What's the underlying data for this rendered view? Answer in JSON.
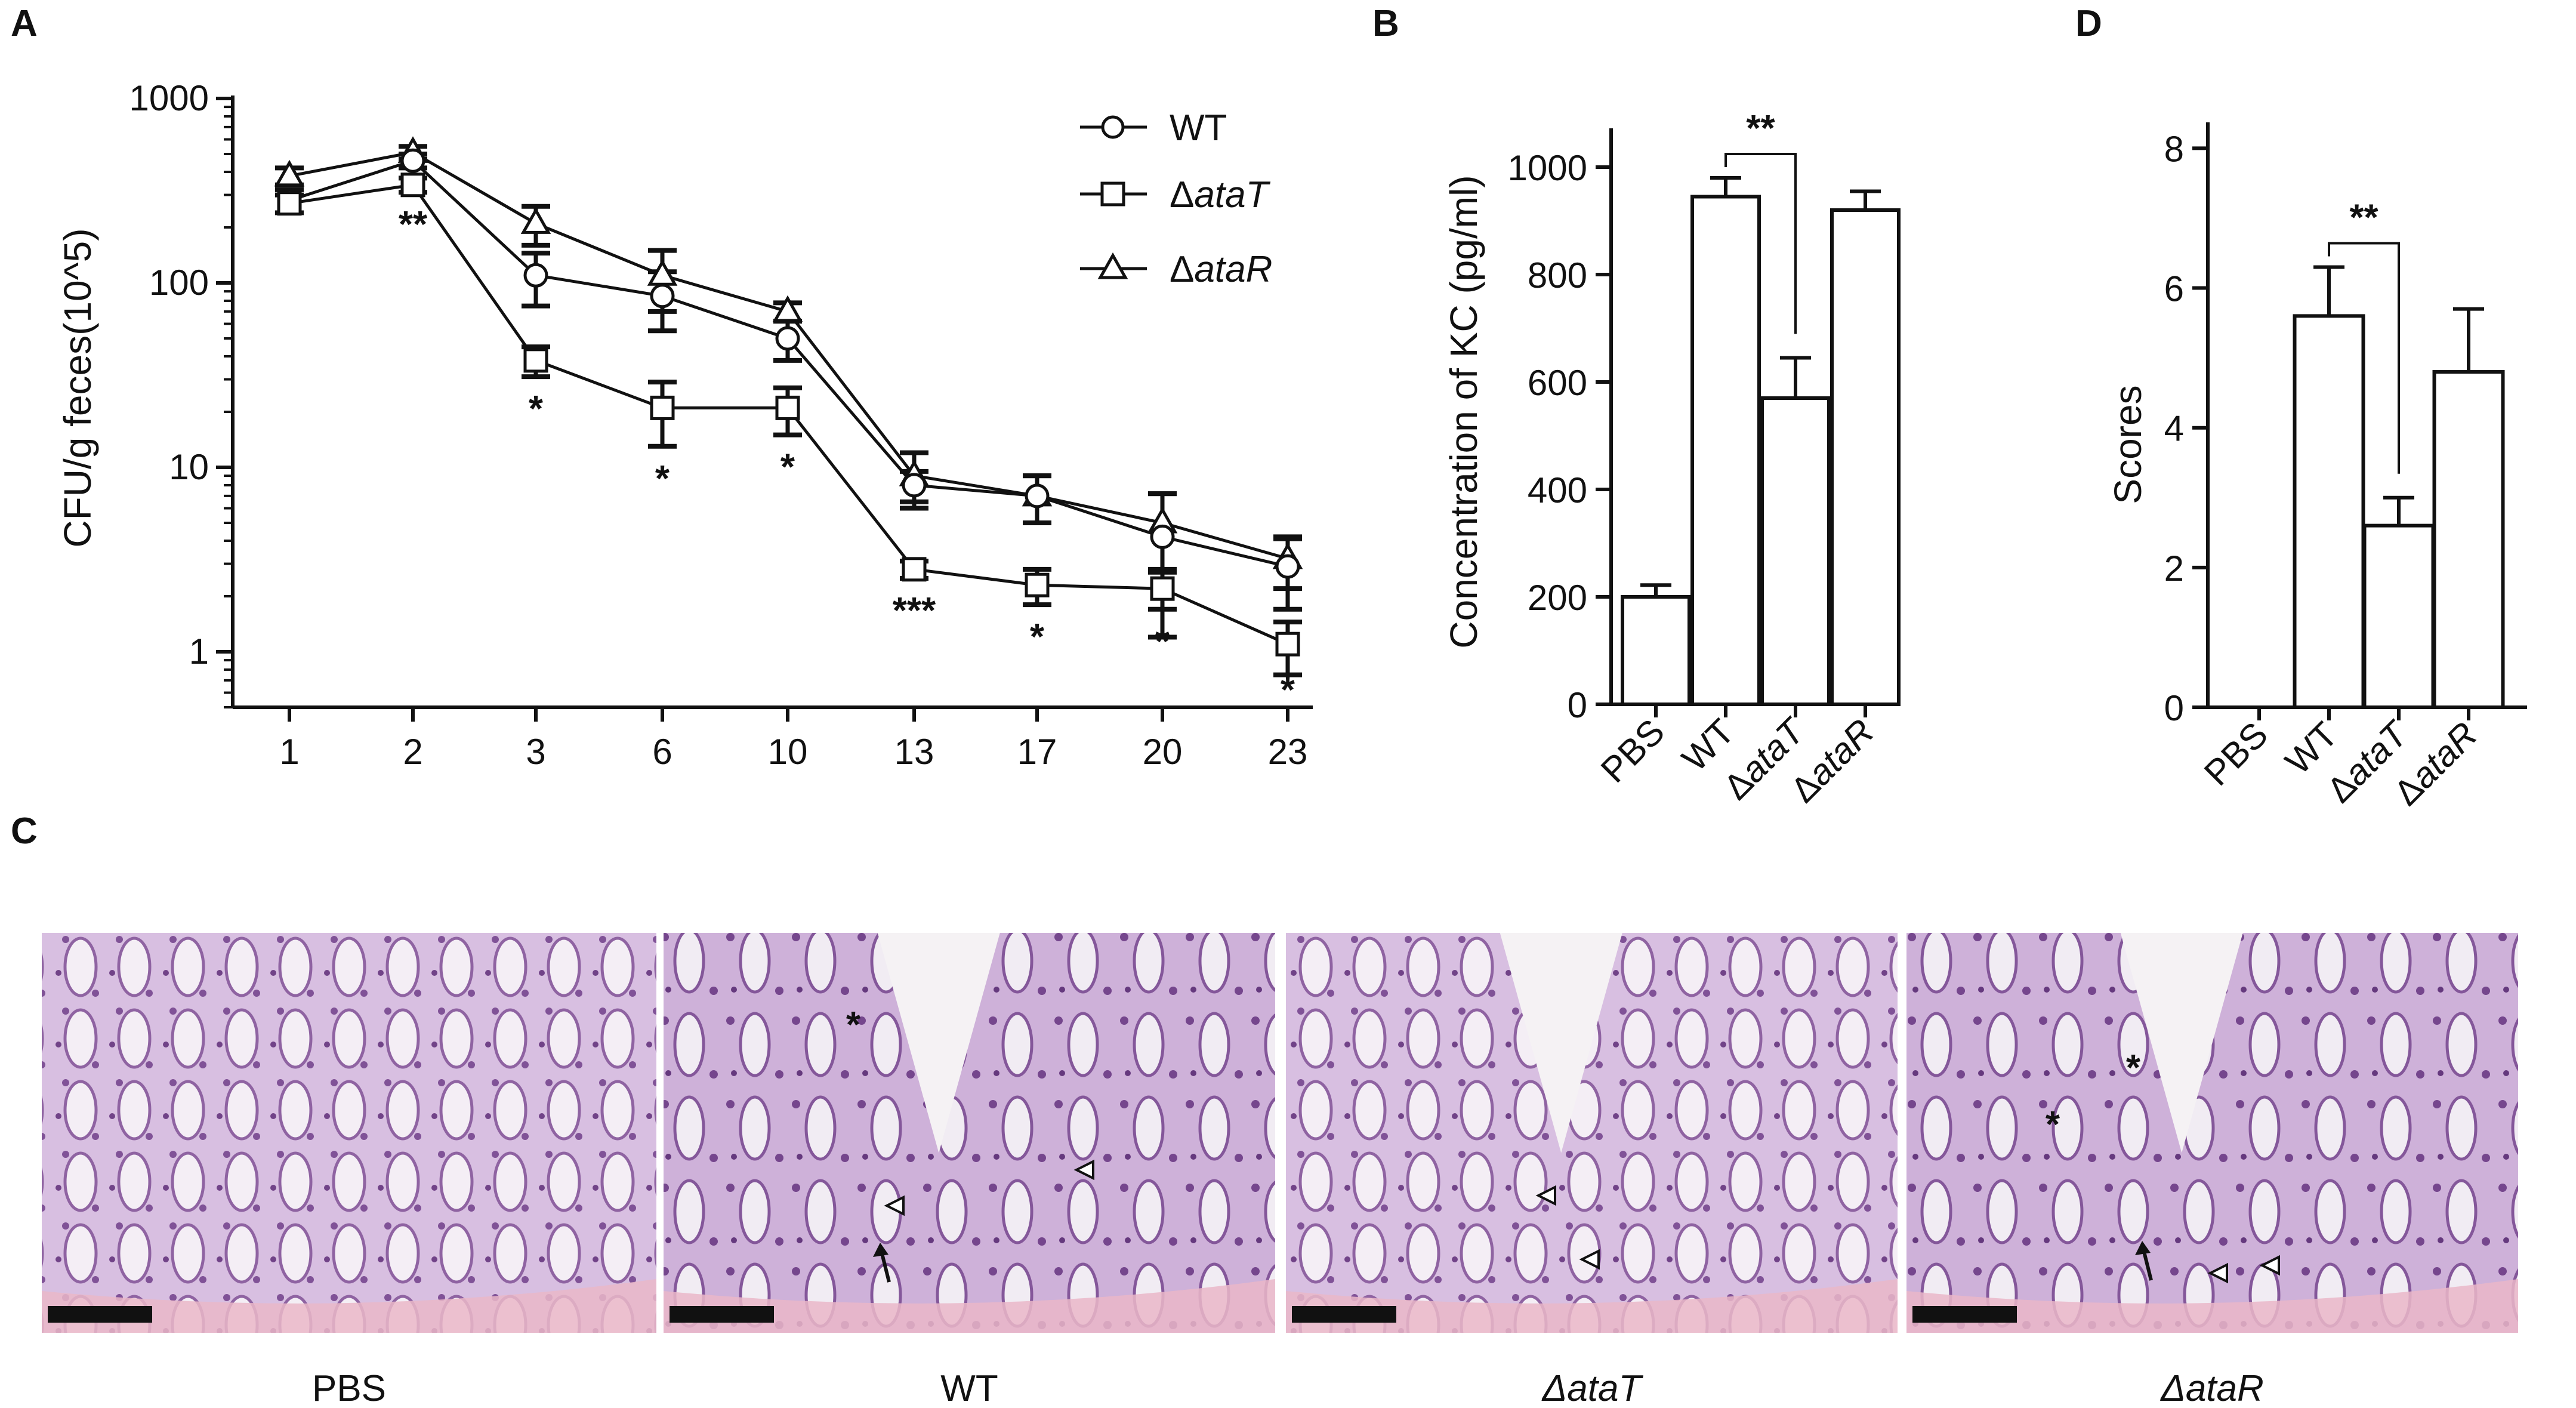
{
  "panels": {
    "A": "A",
    "B": "B",
    "C": "C",
    "D": "D"
  },
  "chart_data": [
    {
      "panel": "A",
      "type": "line",
      "ylabel": "CFU/g feces(10^5)",
      "yscale": "log",
      "ylim": [
        0.5,
        1000
      ],
      "yticks": [
        "1",
        "10",
        "100",
        "1000"
      ],
      "ytick_values": [
        1,
        10,
        100,
        1000
      ],
      "categories": [
        "1",
        "2",
        "3",
        "6",
        "10",
        "13",
        "17",
        "20",
        "23"
      ],
      "legend_position": "top-right",
      "series": [
        {
          "name": "WT",
          "marker": "circle",
          "values": [
            280,
            460,
            110,
            85,
            50,
            8,
            7,
            4.2,
            2.9
          ],
          "err": [
            40,
            40,
            35,
            30,
            12,
            1.5,
            2,
            3,
            1.2
          ]
        },
        {
          "name": "ΔataT",
          "marker": "square",
          "values": [
            270,
            340,
            38,
            21,
            21,
            2.8,
            2.3,
            2.2,
            1.1
          ],
          "err": [
            30,
            30,
            7,
            8,
            6,
            0.3,
            0.5,
            0.5,
            0.35
          ]
        },
        {
          "name": "ΔataR",
          "marker": "triangle",
          "values": [
            380,
            510,
            210,
            110,
            70,
            9,
            7,
            5,
            3.2
          ],
          "err": [
            40,
            40,
            50,
            40,
            8,
            3,
            2,
            2.2,
            1
          ]
        }
      ],
      "annotations": [
        {
          "category": "2",
          "text": "**"
        },
        {
          "category": "3",
          "text": "*"
        },
        {
          "category": "6",
          "text": "*"
        },
        {
          "category": "10",
          "text": "*"
        },
        {
          "category": "13",
          "text": "***"
        },
        {
          "category": "17",
          "text": "*"
        },
        {
          "category": "20",
          "text": "*"
        },
        {
          "category": "23",
          "text": "*"
        }
      ]
    },
    {
      "panel": "B",
      "type": "bar",
      "ylabel": "Concentration of KC (pg/ml)",
      "ylim": [
        0,
        1050
      ],
      "yticks": [
        "0",
        "200",
        "400",
        "600",
        "800",
        "1000"
      ],
      "ytick_values": [
        0,
        200,
        400,
        600,
        800,
        1000
      ],
      "categories": [
        "PBS",
        "WT",
        "ΔataT",
        "ΔataR"
      ],
      "values": [
        200,
        945,
        570,
        920
      ],
      "err": [
        22,
        35,
        75,
        35
      ],
      "significance": {
        "from": "WT",
        "to": "ΔataT",
        "text": "**"
      }
    },
    {
      "panel": "D",
      "type": "bar",
      "ylabel": "Scores",
      "ylim": [
        0,
        8.2
      ],
      "yticks": [
        "0",
        "2",
        "4",
        "6",
        "8"
      ],
      "ytick_values": [
        0,
        2,
        4,
        6,
        8
      ],
      "categories": [
        "PBS",
        "WT",
        "ΔataT",
        "ΔataR"
      ],
      "values": [
        0,
        5.6,
        2.6,
        4.8
      ],
      "err": [
        0,
        0.7,
        0.4,
        0.9
      ],
      "significance": {
        "from": "WT",
        "to": "ΔataT",
        "text": "**"
      }
    }
  ],
  "histology": {
    "captions": [
      "PBS",
      "WT",
      "ΔataT",
      "ΔataR"
    ],
    "marks": {
      "asterisk": "*",
      "arrow": "arrow",
      "triangle": "open-triangle"
    },
    "tissue_color": "#c7a3d1",
    "background_color": "#f2eef0"
  }
}
